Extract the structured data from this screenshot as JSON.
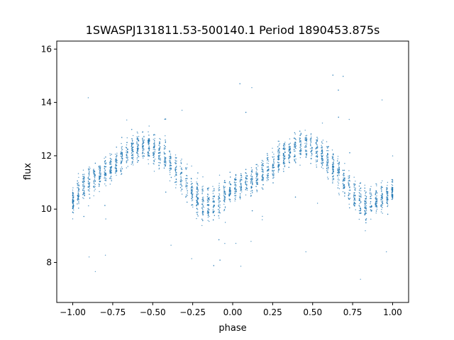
{
  "chart_data": {
    "type": "scatter",
    "title": "1SWASPJ131811.53-500140.1 Period 1890453.875s",
    "xlabel": "phase",
    "ylabel": "flux",
    "xlim": [
      -1.1,
      1.1
    ],
    "ylim": [
      6.5,
      16.3
    ],
    "xticks": [
      -1.0,
      -0.75,
      -0.5,
      -0.25,
      0.0,
      0.25,
      0.5,
      0.75,
      1.0
    ],
    "xtick_labels": [
      "−1.00",
      "−0.75",
      "−0.50",
      "−0.25",
      "0.00",
      "0.25",
      "0.50",
      "0.75",
      "1.00"
    ],
    "yticks": [
      8,
      10,
      12,
      14,
      16
    ],
    "ytick_labels": [
      "8",
      "10",
      "12",
      "14",
      "16"
    ],
    "grid": false,
    "marker_color": "#1f77b4",
    "series": [
      {
        "x": [
          -1.0,
          -0.95,
          -0.9,
          -0.85,
          -0.8,
          -0.75,
          -0.7,
          -0.65,
          -0.6,
          -0.55,
          -0.5,
          -0.45,
          -0.4,
          -0.35,
          -0.3,
          -0.25,
          -0.2,
          -0.15,
          -0.1,
          -0.05,
          0.0,
          0.05,
          0.1,
          0.15,
          0.2,
          0.25,
          0.3,
          0.35,
          0.4,
          0.45,
          0.5,
          0.55,
          0.6,
          0.65,
          0.7,
          0.75,
          0.8,
          0.85,
          0.9,
          0.95,
          1.0
        ],
        "y": [
          10.2,
          10.8,
          11.0,
          11.2,
          11.4,
          11.6,
          11.9,
          12.1,
          12.3,
          12.4,
          12.3,
          12.1,
          11.8,
          11.4,
          11.0,
          10.6,
          10.3,
          10.2,
          10.3,
          10.5,
          10.7,
          10.9,
          11.0,
          11.2,
          11.4,
          11.6,
          11.9,
          12.1,
          12.3,
          12.4,
          12.3,
          12.1,
          11.8,
          11.4,
          11.0,
          10.6,
          10.3,
          10.2,
          10.3,
          10.5,
          10.7
        ],
        "spread": [
          0.8,
          1.0,
          1.0,
          1.0,
          1.0,
          1.0,
          1.0,
          1.0,
          1.0,
          1.0,
          1.0,
          1.0,
          1.0,
          1.1,
          1.2,
          1.2,
          1.2,
          1.2,
          1.1,
          1.0,
          1.0,
          1.0,
          1.0,
          1.0,
          1.0,
          1.0,
          1.0,
          1.0,
          1.0,
          1.0,
          1.0,
          1.0,
          1.0,
          1.1,
          1.2,
          1.2,
          1.2,
          1.2,
          1.1,
          1.0,
          0.8
        ]
      }
    ]
  }
}
